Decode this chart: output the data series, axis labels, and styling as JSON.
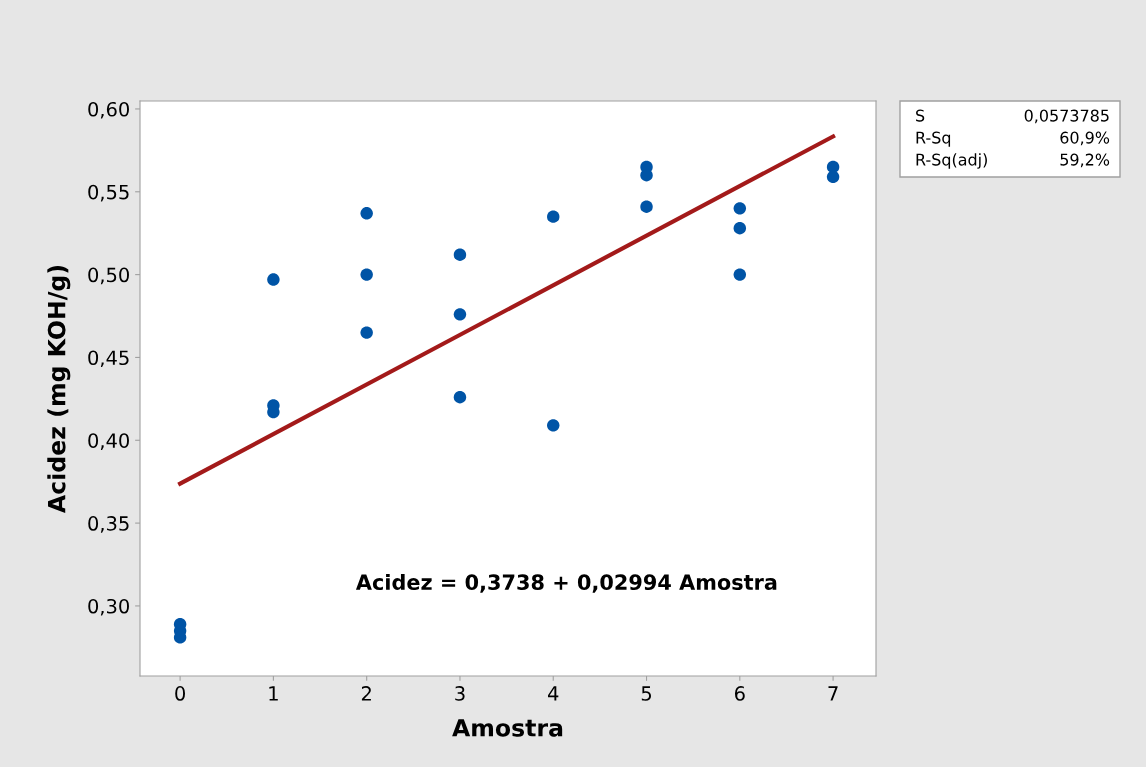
{
  "chart_data": {
    "type": "scatter",
    "xlabel": "Amostra",
    "ylabel": "Acidez (mg KOH/g)",
    "xlim": [
      -0.43,
      7.46
    ],
    "xticks": [
      0,
      1,
      2,
      3,
      4,
      5,
      6,
      7
    ],
    "ylim": [
      0.2577,
      0.6048
    ],
    "yticks": [
      {
        "value": 0.3,
        "label": "0,30"
      },
      {
        "value": 0.35,
        "label": "0,35"
      },
      {
        "value": 0.4,
        "label": "0,40"
      },
      {
        "value": 0.45,
        "label": "0,45"
      },
      {
        "value": 0.5,
        "label": "0,50"
      },
      {
        "value": 0.55,
        "label": "0,55"
      },
      {
        "value": 0.6,
        "label": "0,60"
      }
    ],
    "grid": false,
    "series": [
      {
        "marker": "circle",
        "color": "#0054a6",
        "x": [
          0,
          0,
          0,
          1,
          1,
          1,
          2,
          2,
          2,
          3,
          3,
          3,
          4,
          4,
          5,
          5,
          5,
          6,
          6,
          6,
          7,
          7
        ],
        "values": [
          0.289,
          0.285,
          0.281,
          0.497,
          0.421,
          0.417,
          0.537,
          0.5,
          0.465,
          0.512,
          0.476,
          0.426,
          0.535,
          0.409,
          0.565,
          0.56,
          0.541,
          0.54,
          0.528,
          0.5,
          0.565,
          0.559
        ]
      },
      {
        "type": "line",
        "color": "#a31a1a",
        "x": [
          0,
          7
        ],
        "values": [
          0.3738,
          0.5834
        ]
      }
    ],
    "annotations": [
      "Acidez = 0,3738 + 0,02994 Amostra",
      "S",
      "0,0573785",
      "R-Sq",
      "60,9%",
      "R-Sq(adj)",
      "59,2%"
    ]
  }
}
